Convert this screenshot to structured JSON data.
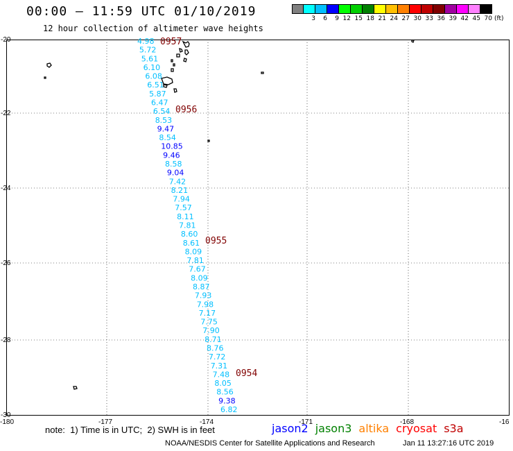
{
  "header": {
    "title": "00:00 — 11:59 UTC 01/10/2019",
    "subtitle": "12 hour collection of altimeter wave heights"
  },
  "color_scale": {
    "swatches": [
      "#808080",
      "#00ffff",
      "#00bfff",
      "#0000ff",
      "#00ff00",
      "#00d000",
      "#008000",
      "#ffff00",
      "#ffc000",
      "#ff8000",
      "#ff0000",
      "#c00000",
      "#800000",
      "#a000a0",
      "#ff00ff",
      "#ff80ff",
      "#000000"
    ],
    "labels": [
      "",
      "3",
      "6",
      "9",
      "12",
      "15",
      "18",
      "21",
      "24",
      "27",
      "30",
      "33",
      "36",
      "39",
      "42",
      "45",
      "70"
    ],
    "unit": "(ft)"
  },
  "axes": {
    "lat_labels": [
      "-20",
      "-22",
      "-24",
      "-26",
      "-28",
      "-30"
    ],
    "lon_labels": [
      "-180",
      "-177",
      "-174",
      "-171",
      "-168",
      "-16"
    ]
  },
  "track": {
    "values": [
      "4.98",
      "5.72",
      "5.61",
      "6.10",
      "6.08",
      "6.51",
      "5.87",
      "6.47",
      "6.54",
      "8.53",
      "9.47",
      "8.54",
      "10.85",
      "9.46",
      "8.58",
      "9.04",
      "7.42",
      "8.21",
      "7.94",
      "7.57",
      "8.11",
      "7.81",
      "8.60",
      "8.61",
      "8.09",
      "7.81",
      "7.67",
      "8.09",
      "8.87",
      "7.93",
      "7.98",
      "7.17",
      "7.75",
      "7.90",
      "8.71",
      "8.76",
      "7.72",
      "7.31",
      "7.48",
      "8.05",
      "8.56",
      "9.38",
      "6.82"
    ],
    "light_color": "#00bfff",
    "dark_color": "#0000ff",
    "times": [
      "0957",
      "0956",
      "0955",
      "0954"
    ],
    "time_color": "#800000"
  },
  "notes": {
    "note_text": "note:  1) Time is in UTC;  2) SWH is in feet"
  },
  "satellites": [
    {
      "name": "jason2",
      "color": "#0000ff"
    },
    {
      "name": "jason3",
      "color": "#008000"
    },
    {
      "name": "altika",
      "color": "#ff8000"
    },
    {
      "name": "cryosat",
      "color": "#ff0000"
    },
    {
      "name": "s3a",
      "color": "#c00000"
    }
  ],
  "footer": {
    "center": "NOAA/NESDIS Center for Satellite Applications and Research",
    "date": "Jan 11 13:27:16 UTC 2019"
  }
}
